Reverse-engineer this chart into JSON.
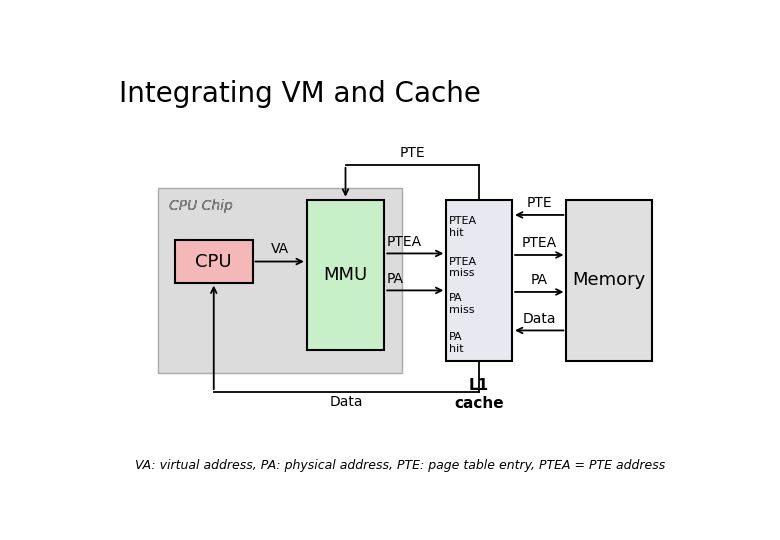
{
  "title": "Integrating VM and Cache",
  "subtitle": "VA: virtual address, PA: physical address, PTE: page table entry, PTEA = PTE address",
  "title_fontsize": 20,
  "subtitle_fontsize": 9,
  "bg_color": "#ffffff",
  "chip_bg": "#dcdcdc",
  "cpu_color": "#f4b8b8",
  "mmu_color": "#c8f0c8",
  "cache_color": "#e8e8f0",
  "memory_color": "#e0e0e0",
  "cpu_chip_label": "CPU Chip",
  "cpu_label": "CPU",
  "mmu_label": "MMU",
  "memory_label": "Memory",
  "l1_cache_label": "L1\ncache",
  "arrow_color": "#000000",
  "text_color": "#000000",
  "chip_edge": "#aaaaaa"
}
